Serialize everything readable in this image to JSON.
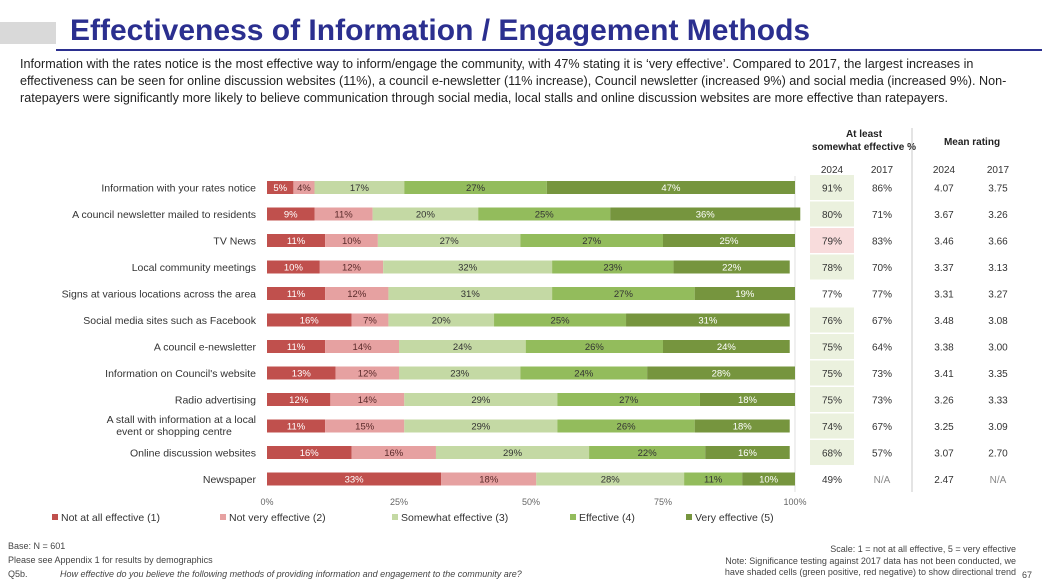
{
  "title": "Effectiveness of Information / Engagement Methods",
  "intro": "Information with the rates notice is the most effective way to inform/engage the community, with 47% stating it is ‘very effective’. Compared to 2017, the largest increases in effectiveness can be seen for online discussion websites (11%), a council e-newsletter (11% increase), Council newsletter (increased 9%) and social media (increased 9%). Non-ratepayers were significantly more likely to believe communication through social media, local stalls and online discussion websites are more effective than ratepayers.",
  "table": {
    "col_group_1": "At least somewhat effective %",
    "col_group_2": "Mean rating",
    "years": [
      "2024",
      "2017",
      "2024",
      "2017"
    ]
  },
  "footer": {
    "base": "Base: N = 601",
    "appendix": "Please see Appendix 1 for results by demographics",
    "question_code": "Q5b.",
    "question": "How effective do you believe the following methods of providing information and engagement to the community are?",
    "scale": "Scale: 1 = not at all effective, 5 = very effective",
    "note_1": "Note: Significance testing against 2017 data has not been conducted, we",
    "note_2": "have shaded cells (green positive, red negative) to show directional trend",
    "page_number": "67"
  },
  "colors": {
    "not_at_all": "#c0504d",
    "not_very": "#e6a1a1",
    "somewhat": "#c4d9a4",
    "effective": "#93bc5c",
    "very": "#76953e",
    "cell_green": "#ebf1de",
    "cell_red": "#f8dcdc"
  },
  "chart_data": {
    "type": "bar",
    "orientation": "horizontal",
    "stacked": true,
    "xlim": [
      0,
      100
    ],
    "x_ticks": [
      "0%",
      "25%",
      "50%",
      "75%",
      "100%"
    ],
    "categories": [
      "Information with your rates notice",
      "A council newsletter mailed to residents",
      "TV News",
      "Local community meetings",
      "Signs at various locations across the area",
      "Social media sites such as Facebook",
      "A council e-newsletter",
      "Information on Council's website",
      "Radio advertising",
      "A stall with information at a local event or shopping centre",
      "Online discussion websites",
      "Newspaper"
    ],
    "series": [
      {
        "name": "Not at all effective (1)",
        "values": [
          5,
          9,
          11,
          10,
          11,
          16,
          11,
          13,
          12,
          11,
          16,
          33
        ]
      },
      {
        "name": "Not very effective (2)",
        "values": [
          4,
          11,
          10,
          12,
          12,
          7,
          14,
          12,
          14,
          15,
          16,
          18
        ]
      },
      {
        "name": "Somewhat effective (3)",
        "values": [
          17,
          20,
          27,
          32,
          31,
          20,
          24,
          23,
          29,
          29,
          29,
          28
        ]
      },
      {
        "name": "Effective (4)",
        "values": [
          27,
          25,
          27,
          23,
          27,
          25,
          26,
          24,
          27,
          26,
          22,
          11
        ]
      },
      {
        "name": "Very effective (5)",
        "values": [
          47,
          36,
          25,
          22,
          19,
          31,
          24,
          28,
          18,
          18,
          16,
          10
        ]
      }
    ],
    "legend_position": "bottom",
    "table_rows": [
      {
        "somewhat_2024": "91%",
        "somewhat_2017": "86%",
        "mean_2024": "4.07",
        "mean_2017": "3.75",
        "shade": "green"
      },
      {
        "somewhat_2024": "80%",
        "somewhat_2017": "71%",
        "mean_2024": "3.67",
        "mean_2017": "3.26",
        "shade": "green"
      },
      {
        "somewhat_2024": "79%",
        "somewhat_2017": "83%",
        "mean_2024": "3.46",
        "mean_2017": "3.66",
        "shade": "red"
      },
      {
        "somewhat_2024": "78%",
        "somewhat_2017": "70%",
        "mean_2024": "3.37",
        "mean_2017": "3.13",
        "shade": "green"
      },
      {
        "somewhat_2024": "77%",
        "somewhat_2017": "77%",
        "mean_2024": "3.31",
        "mean_2017": "3.27",
        "shade": "none"
      },
      {
        "somewhat_2024": "76%",
        "somewhat_2017": "67%",
        "mean_2024": "3.48",
        "mean_2017": "3.08",
        "shade": "green"
      },
      {
        "somewhat_2024": "75%",
        "somewhat_2017": "64%",
        "mean_2024": "3.38",
        "mean_2017": "3.00",
        "shade": "green"
      },
      {
        "somewhat_2024": "75%",
        "somewhat_2017": "73%",
        "mean_2024": "3.41",
        "mean_2017": "3.35",
        "shade": "green"
      },
      {
        "somewhat_2024": "75%",
        "somewhat_2017": "73%",
        "mean_2024": "3.26",
        "mean_2017": "3.33",
        "shade": "green"
      },
      {
        "somewhat_2024": "74%",
        "somewhat_2017": "67%",
        "mean_2024": "3.25",
        "mean_2017": "3.09",
        "shade": "green"
      },
      {
        "somewhat_2024": "68%",
        "somewhat_2017": "57%",
        "mean_2024": "3.07",
        "mean_2017": "2.70",
        "shade": "green"
      },
      {
        "somewhat_2024": "49%",
        "somewhat_2017": "N/A",
        "mean_2024": "2.47",
        "mean_2017": "N/A",
        "shade": "none"
      }
    ]
  }
}
